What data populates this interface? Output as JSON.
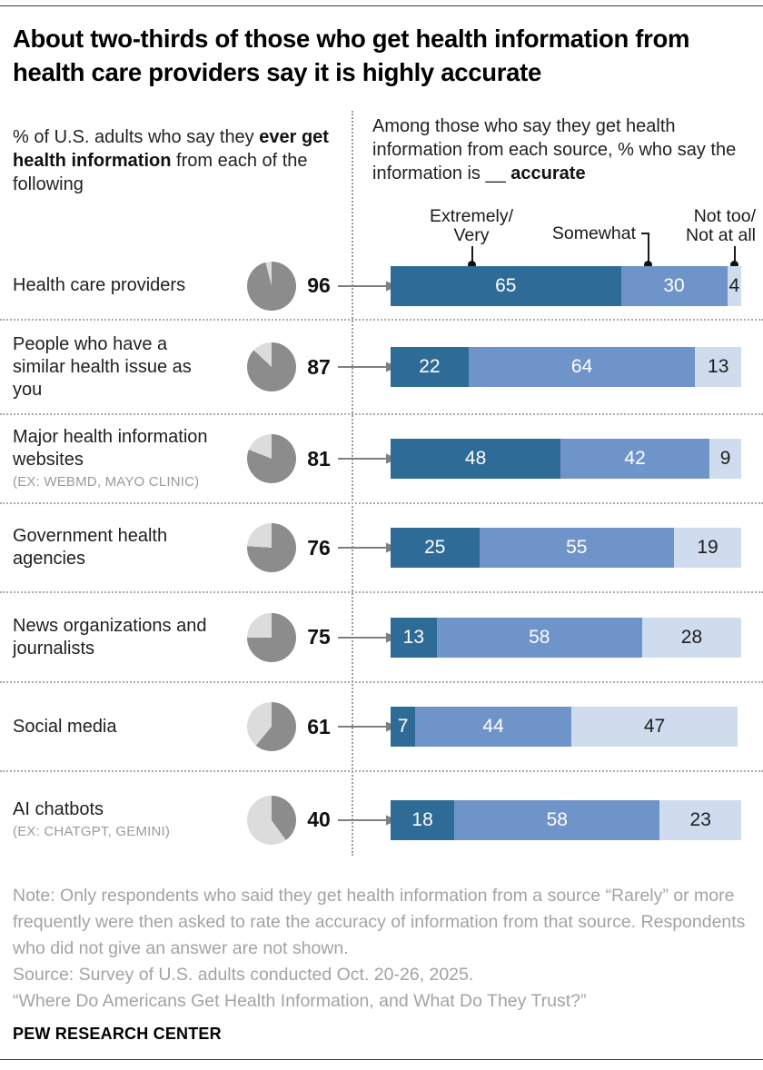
{
  "title": "About two-thirds of those who get health information from health care providers say it is highly accurate",
  "left_subtitle": {
    "pre": "% of U.S. adults who say they ",
    "bold": "ever get health information",
    "post": " from each of the following"
  },
  "right_subtitle": {
    "pre": "Among those who say they get health information from each source, % who say the information is __ ",
    "bold": "accurate"
  },
  "legend": {
    "extremely_line1": "Extremely/",
    "extremely_line2": "Very",
    "somewhat": "Somewhat",
    "not_too_line1": "Not too/",
    "not_too_line2": "Not at all"
  },
  "colors": {
    "extremely_very": "#2e6b96",
    "somewhat": "#6f94c9",
    "not_too": "#cfdcee",
    "pie_filled": "#8c8c8c",
    "pie_empty": "#dcdcdc",
    "arrow": "#7f7f7f"
  },
  "rows": [
    {
      "label": "Health care providers",
      "sublabel": "",
      "ever": 96,
      "segments": [
        65,
        30,
        4
      ]
    },
    {
      "label": "People who have a similar health issue as you",
      "sublabel": "",
      "ever": 87,
      "segments": [
        22,
        64,
        13
      ]
    },
    {
      "label": "Major health information websites",
      "sublabel": "(EX: WEBMD, MAYO CLINIC)",
      "ever": 81,
      "segments": [
        48,
        42,
        9
      ]
    },
    {
      "label": "Government health agencies",
      "sublabel": "",
      "ever": 76,
      "segments": [
        25,
        55,
        19
      ]
    },
    {
      "label": "News organizations and journalists",
      "sublabel": "",
      "ever": 75,
      "segments": [
        13,
        58,
        28
      ]
    },
    {
      "label": "Social media",
      "sublabel": "",
      "ever": 61,
      "segments": [
        7,
        44,
        47
      ]
    },
    {
      "label": "AI chatbots",
      "sublabel": "(EX: CHATGPT, GEMINI)",
      "ever": 40,
      "segments": [
        18,
        58,
        23
      ]
    }
  ],
  "chart_data": {
    "type": "bar",
    "title": "About two-thirds of those who get health information from health care providers say it is highly accurate",
    "categories": [
      "Health care providers",
      "People who have a similar health issue as you",
      "Major health information websites",
      "Government health agencies",
      "News organizations and journalists",
      "Social media",
      "AI chatbots"
    ],
    "ever_get_health_information_pct": [
      96,
      87,
      81,
      76,
      75,
      61,
      40
    ],
    "series": [
      {
        "name": "Extremely/Very",
        "values": [
          65,
          22,
          48,
          25,
          13,
          7,
          18
        ]
      },
      {
        "name": "Somewhat",
        "values": [
          30,
          64,
          42,
          55,
          58,
          44,
          58
        ]
      },
      {
        "name": "Not too/Not at all",
        "values": [
          4,
          13,
          9,
          19,
          28,
          47,
          23
        ]
      }
    ],
    "xlabel": "% who say the information is __ accurate",
    "ylabel": "",
    "xlim": [
      0,
      100
    ],
    "legend_position": "top",
    "grid": false
  },
  "notes": {
    "note": "Note: Only respondents who said they get health information from a source “Rarely” or more frequently were then asked to rate the accuracy of information from that source. Respondents who did not give an answer are not shown.",
    "source": "Source: Survey of U.S. adults conducted Oct. 20-26, 2025.",
    "report": "“Where Do Americans Get Health Information, and What Do They Trust?”",
    "brand": "PEW RESEARCH CENTER"
  }
}
